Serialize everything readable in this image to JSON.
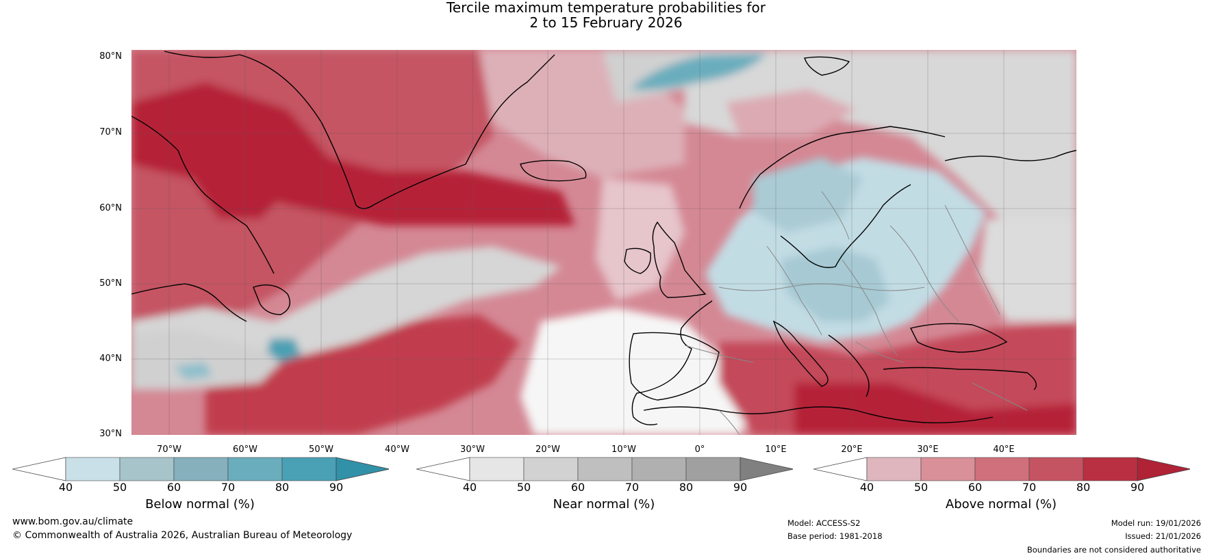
{
  "title": {
    "line1": "Tercile maximum temperature probabilities for",
    "line2": "2 to 15 February 2026"
  },
  "map": {
    "region": "North Atlantic and Europe",
    "lat_labels": [
      "80°N",
      "70°N",
      "60°N",
      "50°N",
      "40°N",
      "30°N"
    ],
    "lon_labels": [
      "70°W",
      "60°W",
      "50°W",
      "40°W",
      "30°W",
      "20°W",
      "10°W",
      "0°",
      "10°E",
      "20°E",
      "30°E",
      "40°E"
    ],
    "colors": {
      "above": [
        "#e0b6be",
        "#d88e98",
        "#cc6b77",
        "#bf4a58",
        "#b52437"
      ],
      "near": [
        "#e6e6e6",
        "#d2d2d2",
        "#bebebe",
        "#aaaaaa",
        "#8a8a8a"
      ],
      "below": [
        "#c9e0e8",
        "#a6c4ca",
        "#85b0bc",
        "#5fa5b3",
        "#4ba0b3"
      ],
      "coast": "#000000",
      "border": "#888888"
    }
  },
  "colorbars": [
    {
      "label": "Below normal (%)",
      "ticks": [
        "40",
        "50",
        "60",
        "70",
        "80",
        "90"
      ],
      "colors": [
        "#ffffff",
        "#c9e0e8",
        "#a6c4ca",
        "#85b0bc",
        "#6aadbd",
        "#4aa0b5",
        "#3191a8"
      ]
    },
    {
      "label": "Near normal (%)",
      "ticks": [
        "40",
        "50",
        "60",
        "70",
        "80",
        "90"
      ],
      "colors": [
        "#ffffff",
        "#e6e6e6",
        "#d2d2d2",
        "#bfbfbf",
        "#b0b0b0",
        "#a0a0a0",
        "#808080"
      ]
    },
    {
      "label": "Above normal (%)",
      "ticks": [
        "40",
        "50",
        "60",
        "70",
        "80",
        "90"
      ],
      "colors": [
        "#ffffff",
        "#e0b6be",
        "#d99098",
        "#cf707c",
        "#c45462",
        "#b93043",
        "#b02236"
      ]
    }
  ],
  "footer": {
    "website": "www.bom.gov.au/climate",
    "copyright": "© Commonwealth of Australia 2026, Australian Bureau of Meteorology",
    "model": "Model: ACCESS-S2",
    "base_period": "Base period: 1981-2018",
    "model_run": "Model run: 19/01/2026",
    "issued": "Issued: 21/01/2026",
    "disclaimer": "Boundaries are not considered authoritative"
  }
}
